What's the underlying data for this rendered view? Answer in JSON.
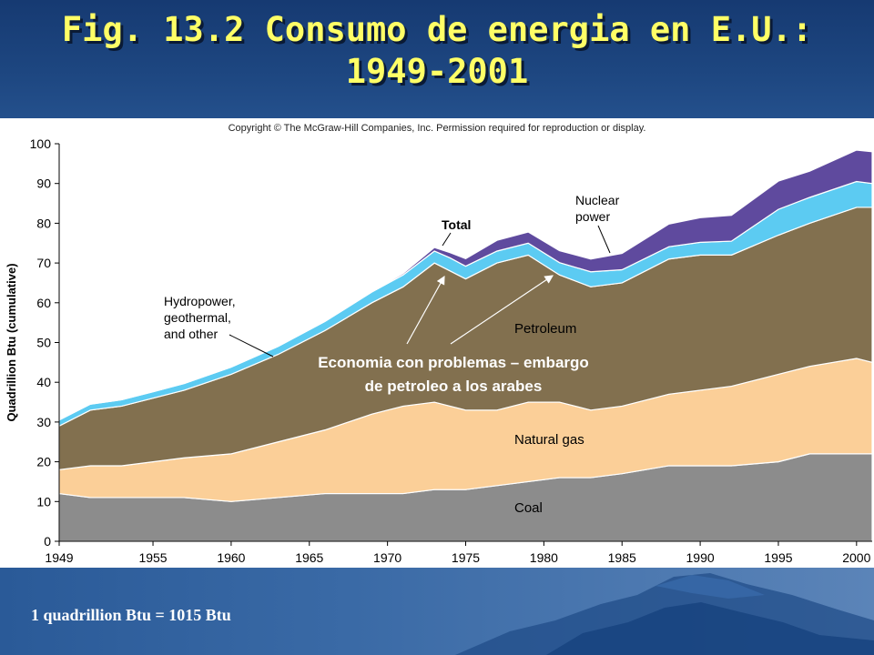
{
  "slide": {
    "title_line1": "Fig. 13.2  Consumo de energia en E.U.:",
    "title_line2": "1949-2001",
    "copyright": "Copyright © The McGraw-Hill Companies, Inc. Permission required for reproduction or display.",
    "footnote": "1 quadrillion Btu = 1015 Btu",
    "annotation_line1": "Economia con problemas – embargo",
    "annotation_line2": "de petroleo a los arabes"
  },
  "colors": {
    "coal": "#8c8c8c",
    "natural_gas": "#fbcf98",
    "petroleum": "#82704f",
    "hydropower": "#5ccbf2",
    "nuclear": "#5f4a9e",
    "title": "#ffff66"
  },
  "chart_data": {
    "type": "area",
    "stacked": true,
    "ylabel": "Quadrillion Btu (cumulative)",
    "xlabel": "",
    "ylim": [
      0,
      100
    ],
    "xlim": [
      1949,
      2001
    ],
    "yticks": [
      "0",
      "10",
      "20",
      "30",
      "40",
      "50",
      "60",
      "70",
      "80",
      "90",
      "100"
    ],
    "xticks": [
      "1949",
      "1955",
      "1960",
      "1965",
      "1970",
      "1975",
      "1980",
      "1985",
      "1990",
      "1995",
      "2000"
    ],
    "xtick_values": [
      1949,
      1955,
      1960,
      1965,
      1970,
      1975,
      1980,
      1985,
      1990,
      1995,
      2000
    ],
    "x": [
      1949,
      1951,
      1953,
      1955,
      1957,
      1960,
      1963,
      1966,
      1969,
      1971,
      1973,
      1974,
      1975,
      1977,
      1979,
      1981,
      1983,
      1985,
      1988,
      1990,
      1992,
      1995,
      1997,
      2000,
      2001
    ],
    "series": [
      {
        "name": "Coal",
        "key": "coal",
        "values": [
          12,
          11,
          11,
          11,
          11,
          10,
          11,
          12,
          12,
          12,
          13,
          13,
          13,
          14,
          15,
          16,
          16,
          17,
          19,
          19,
          19,
          20,
          22,
          22,
          22
        ]
      },
      {
        "name": "Natural gas",
        "key": "natural_gas",
        "values": [
          6,
          8,
          8,
          9,
          10,
          12,
          14,
          16,
          20,
          22,
          22,
          21,
          20,
          19,
          20,
          19,
          17,
          17,
          18,
          19,
          20,
          22,
          22,
          24,
          23
        ]
      },
      {
        "name": "Petroleum",
        "key": "petroleum",
        "values": [
          11,
          14,
          15,
          16,
          17,
          20,
          22,
          25,
          28,
          30,
          35,
          34,
          33,
          37,
          37,
          32,
          31,
          31,
          34,
          34,
          33,
          35,
          36,
          38,
          39
        ]
      },
      {
        "name": "Hydropower, geothermal, and other",
        "key": "hydropower",
        "values": [
          1.5,
          1.5,
          1.6,
          1.6,
          1.7,
          1.8,
          2.0,
          2.3,
          2.7,
          3.0,
          3.0,
          3.3,
          3.2,
          3.0,
          3.0,
          3.1,
          3.8,
          3.3,
          3.1,
          3.2,
          3.5,
          6.5,
          6.5,
          6.5,
          6.0
        ]
      },
      {
        "name": "Nuclear power",
        "key": "nuclear",
        "values": [
          0,
          0,
          0,
          0,
          0,
          0,
          0,
          0,
          0.2,
          0.4,
          0.9,
          1.3,
          1.9,
          2.7,
          2.8,
          3.0,
          3.2,
          4.1,
          5.7,
          6.2,
          6.5,
          7.1,
          6.6,
          7.9,
          8.0
        ]
      }
    ],
    "labels": {
      "total": "Total",
      "nuclear_line1": "Nuclear",
      "nuclear_line2": "power",
      "hydro_line1": "Hydropower,",
      "hydro_line2": "geothermal,",
      "hydro_line3": "and other",
      "petroleum": "Petroleum",
      "natural_gas": "Natural gas",
      "coal": "Coal"
    }
  }
}
